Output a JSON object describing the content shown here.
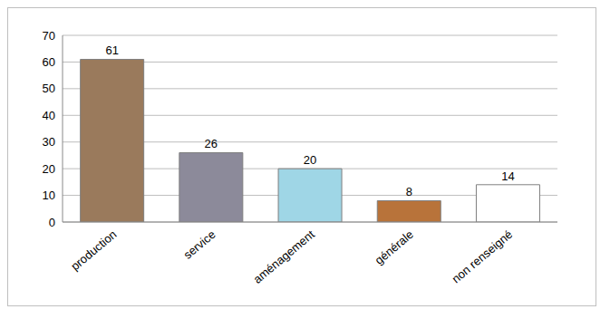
{
  "chart_data": {
    "type": "bar",
    "categories": [
      "production",
      "service",
      "aménagement",
      "générale",
      "non renseigné"
    ],
    "values": [
      61,
      26,
      20,
      8,
      14
    ],
    "colors": [
      "#9a7a5c",
      "#8c8a9a",
      "#9fd6e6",
      "#b8733a",
      "#ffffff"
    ],
    "ylim": [
      0,
      70
    ],
    "yticks": [
      0,
      10,
      20,
      30,
      40,
      50,
      60,
      70
    ],
    "grid": true,
    "data_labels": true
  }
}
